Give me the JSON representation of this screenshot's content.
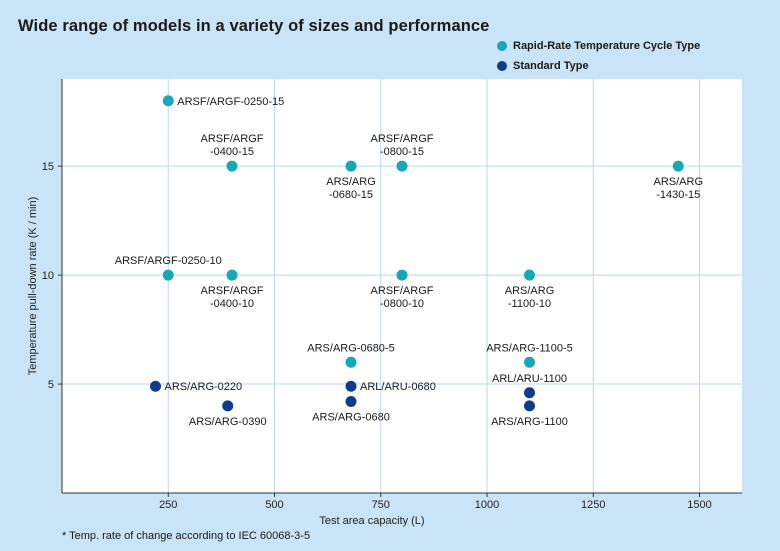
{
  "title": "Wide range of models in a variety of sizes and performance",
  "footnote": "* Temp. rate of change according to IEC 60068-3-5",
  "colors": {
    "rapid": "#17a8b8",
    "standard": "#0d3c8c",
    "grid": "#b9d9ef",
    "plot_bg": "#ffffff",
    "page_bg": "#c9e4f6"
  },
  "legend": [
    {
      "label": "Rapid-Rate Temperature Cycle Type",
      "color": "#17a8b8"
    },
    {
      "label": "Standard Type",
      "color": "#0d3c8c"
    }
  ],
  "chart_data": {
    "type": "scatter",
    "title": "Wide range of models in a variety of sizes and performance",
    "xlabel": "Test area capacity (L)",
    "ylabel": "Temperature pull-down rate (K / min)",
    "xlim": [
      0,
      1600
    ],
    "ylim": [
      0,
      19
    ],
    "xticks": [
      250,
      500,
      750,
      1000,
      1250,
      1500
    ],
    "yticks": [
      5,
      10,
      15
    ],
    "grid": true,
    "legend_position": "top-right",
    "series": [
      {
        "name": "Rapid-Rate Temperature Cycle Type",
        "color": "#17a8b8",
        "points": [
          {
            "x": 250,
            "y": 18,
            "label": [
              "ARSF/ARGF-0250-15"
            ],
            "pos": "right"
          },
          {
            "x": 400,
            "y": 15,
            "label": [
              "ARSF/ARGF",
              "-0400-15"
            ],
            "pos": "above"
          },
          {
            "x": 680,
            "y": 15,
            "label": [
              "ARS/ARG",
              "-0680-15"
            ],
            "pos": "below"
          },
          {
            "x": 800,
            "y": 15,
            "label": [
              "ARSF/ARGF",
              "-0800-15"
            ],
            "pos": "above"
          },
          {
            "x": 1450,
            "y": 15,
            "label": [
              "ARS/ARG",
              "-1430-15"
            ],
            "pos": "below"
          },
          {
            "x": 250,
            "y": 10,
            "label": [
              "ARSF/ARGF-0250-10"
            ],
            "pos": "above"
          },
          {
            "x": 400,
            "y": 10,
            "label": [
              "ARSF/ARGF",
              "-0400-10"
            ],
            "pos": "below"
          },
          {
            "x": 800,
            "y": 10,
            "label": [
              "ARSF/ARGF",
              "-0800-10"
            ],
            "pos": "below"
          },
          {
            "x": 1100,
            "y": 10,
            "label": [
              "ARS/ARG",
              "-1100-10"
            ],
            "pos": "below"
          },
          {
            "x": 680,
            "y": 6,
            "label": [
              "ARS/ARG-0680-5"
            ],
            "pos": "above"
          },
          {
            "x": 1100,
            "y": 6,
            "label": [
              "ARS/ARG-1100-5"
            ],
            "pos": "above"
          }
        ]
      },
      {
        "name": "Standard Type",
        "color": "#0d3c8c",
        "points": [
          {
            "x": 220,
            "y": 4.9,
            "label": [
              "ARS/ARG-0220"
            ],
            "pos": "right"
          },
          {
            "x": 390,
            "y": 4.0,
            "label": [
              "ARS/ARG-0390"
            ],
            "pos": "below"
          },
          {
            "x": 680,
            "y": 4.9,
            "label": [
              "ARL/ARU-0680"
            ],
            "pos": "right"
          },
          {
            "x": 680,
            "y": 4.2,
            "label": [
              "ARS/ARG-0680"
            ],
            "pos": "below"
          },
          {
            "x": 1100,
            "y": 4.6,
            "label": [
              "ARL/ARU-1100"
            ],
            "pos": "above"
          },
          {
            "x": 1100,
            "y": 4.0,
            "label": [
              "ARS/ARG-1100"
            ],
            "pos": "below"
          }
        ]
      }
    ]
  }
}
